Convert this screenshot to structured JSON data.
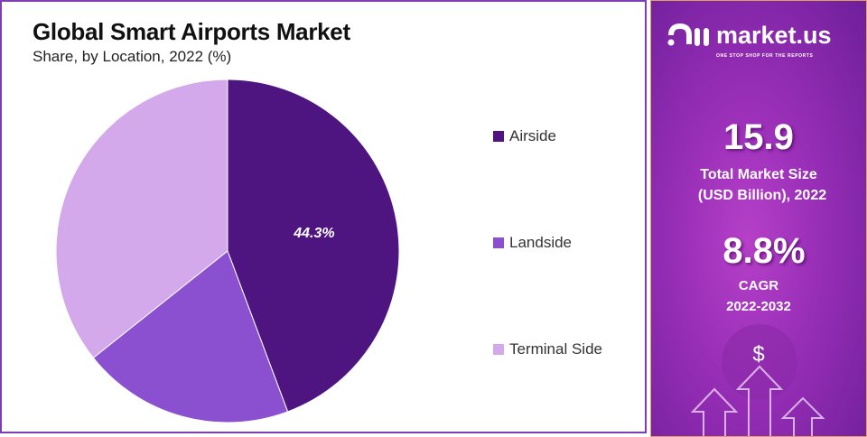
{
  "chart_data": {
    "type": "pie",
    "title": "Global Smart Airports Market",
    "subtitle": "Share, by Location, 2022 (%)",
    "slices": [
      {
        "label": "Airside",
        "value": 44.3,
        "color": "#4e1580",
        "show_label": "44.3%"
      },
      {
        "label": "Landside",
        "value": 20.0,
        "color": "#8a50cf"
      },
      {
        "label": "Terminal Side",
        "value": 35.7,
        "color": "#d3a9ec"
      }
    ],
    "legend_placement": "right"
  },
  "side_panel": {
    "brand": "market.us",
    "tagline": "ONE STOP SHOP FOR THE REPORTS",
    "market_size": "15.9",
    "market_size_label_1": "Total Market Size",
    "market_size_label_2": "(USD Billion), 2022",
    "cagr": "8.8%",
    "cagr_label": "CAGR",
    "cagr_period": "2022-2032",
    "dollar": "$"
  }
}
